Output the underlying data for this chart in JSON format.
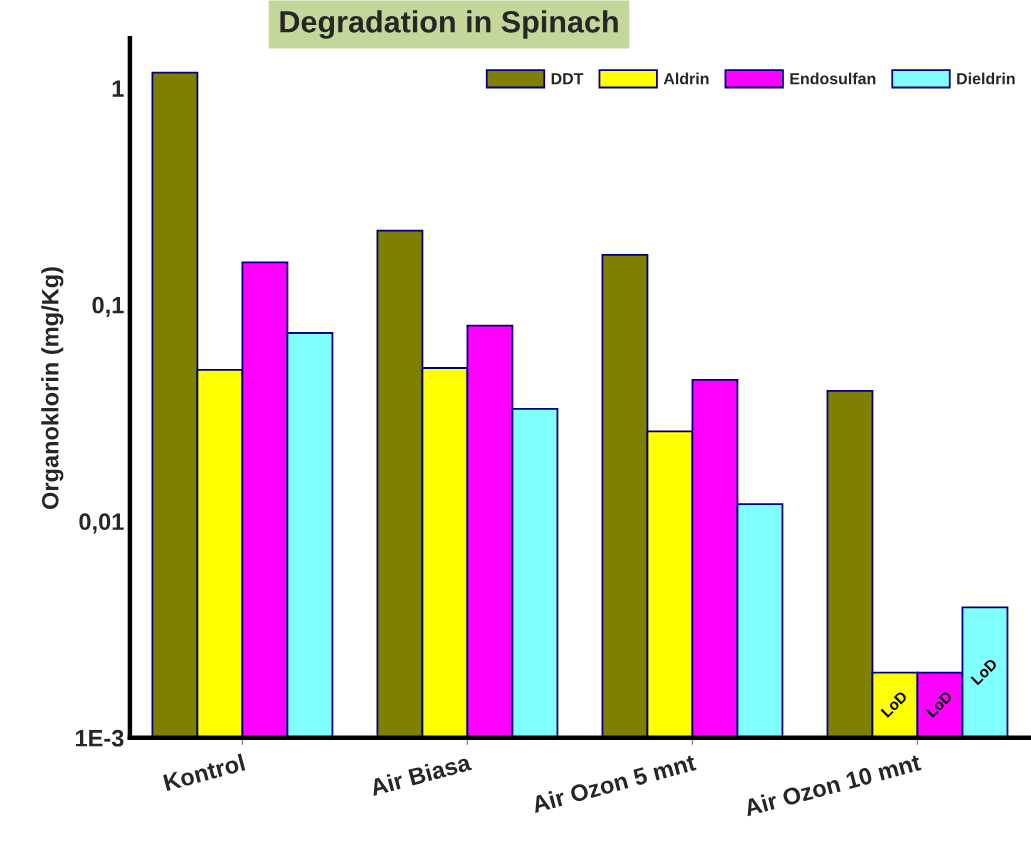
{
  "chart_data": {
    "type": "bar",
    "title": "Degradation in Spinach",
    "ylabel": "Organoklorin (mg/Kg)",
    "categories": [
      "Kontrol",
      "Air Biasa",
      "Air Ozon 5 mnt",
      "Air Ozon 10 mnt"
    ],
    "series": [
      {
        "name": "DDT",
        "color": "#808000",
        "values": [
          1.18,
          0.22,
          0.17,
          0.04
        ]
      },
      {
        "name": "Aldrin",
        "color": "#ffff00",
        "values": [
          0.05,
          0.051,
          0.026,
          0.002
        ],
        "value_labels": [
          null,
          null,
          null,
          "LoD"
        ]
      },
      {
        "name": "Endosulfan",
        "color": "#ff00ff",
        "values": [
          0.157,
          0.08,
          0.045,
          0.002
        ],
        "value_labels": [
          null,
          null,
          null,
          "LoD"
        ]
      },
      {
        "name": "Dieldrin",
        "color": "#80ffff",
        "values": [
          0.074,
          0.033,
          0.012,
          0.004
        ],
        "value_labels": [
          null,
          null,
          null,
          "LoD"
        ]
      }
    ],
    "log": true,
    "ylim": [
      0.001,
      1.7
    ],
    "yticks": [
      {
        "value": 0.001,
        "label": "1E-3"
      },
      {
        "value": 0.01,
        "label": "0,01"
      },
      {
        "value": 0.1,
        "label": "0,1"
      },
      {
        "value": 1,
        "label": "1"
      }
    ],
    "legend": "top right"
  }
}
